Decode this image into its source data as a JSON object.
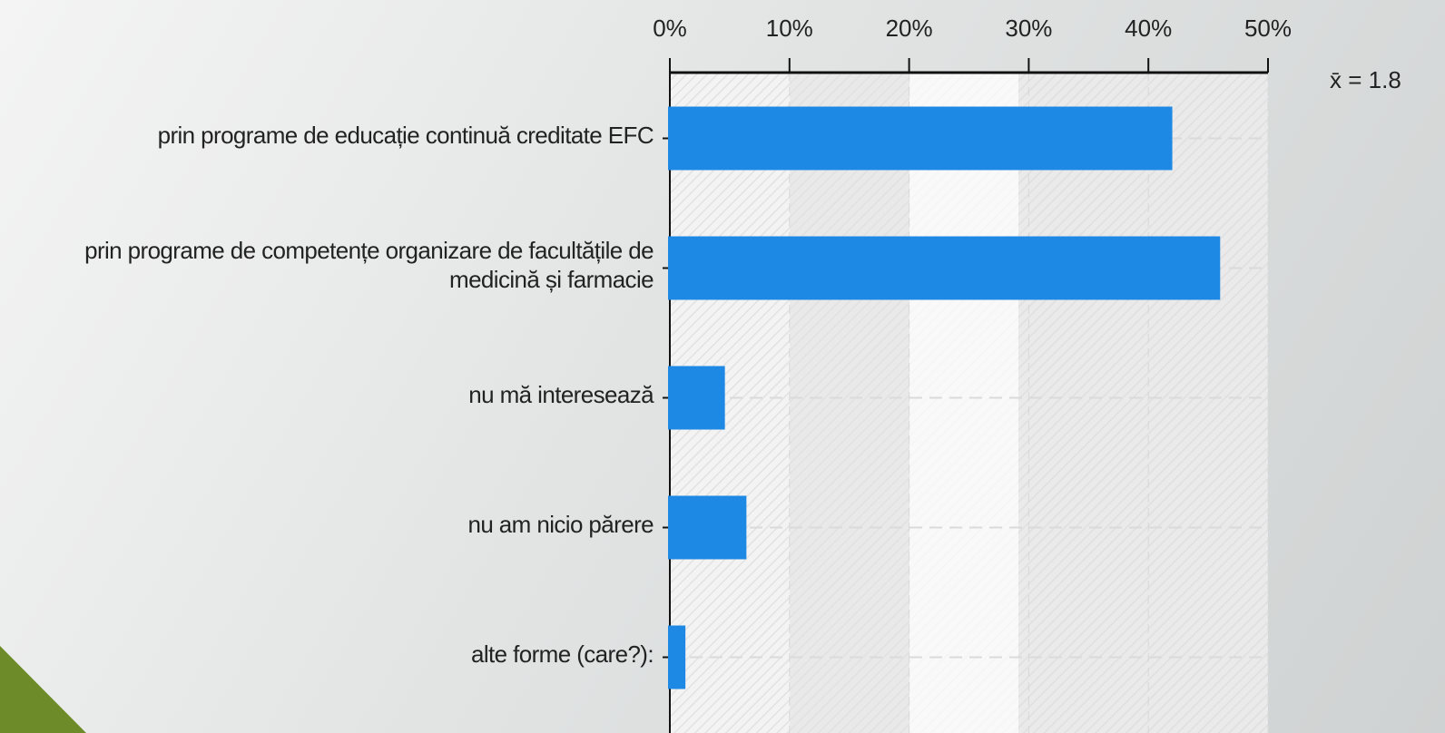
{
  "chart_data": {
    "type": "bar",
    "orientation": "horizontal",
    "categories": [
      "prin programe de educație continuă creditate EFC",
      "prin programe de competențe organizare de facultățile de medicină și farmacie",
      "nu mă interesează",
      "nu am nicio părere",
      "alte forme (care?):"
    ],
    "values": [
      42,
      46,
      4.6,
      6.4,
      1.3
    ],
    "color": "#1e88e5",
    "xlim": [
      0,
      50
    ],
    "xticks": [
      {
        "value": 0,
        "label": "0%"
      },
      {
        "value": 10,
        "label": "10%"
      },
      {
        "value": 20,
        "label": "20%"
      },
      {
        "value": 30,
        "label": "30%"
      },
      {
        "value": 40,
        "label": "40%"
      },
      {
        "value": 50,
        "label": "50%"
      }
    ],
    "grid": true,
    "annotation": "x̄ = 1.8"
  }
}
